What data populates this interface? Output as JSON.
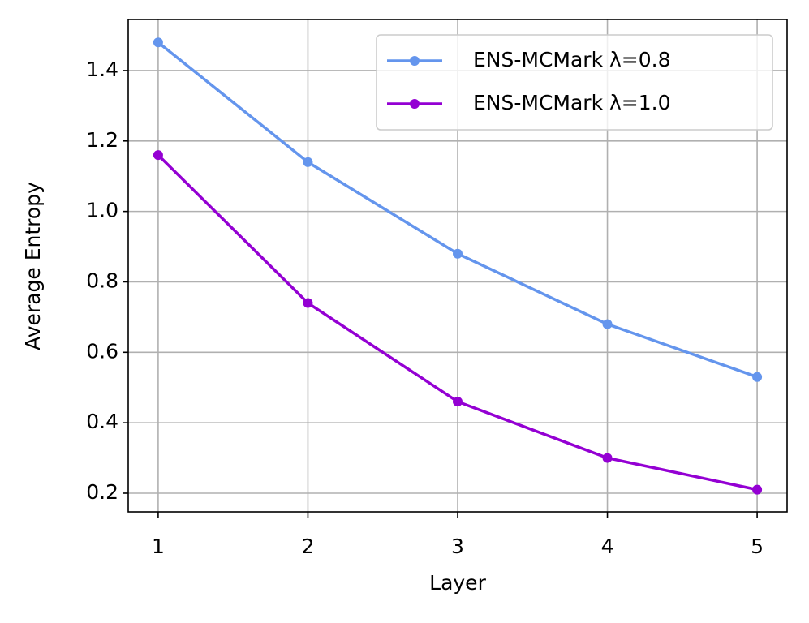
{
  "chart_data": {
    "type": "line",
    "x_label": "Layer",
    "y_label": "Average Entropy",
    "x": [
      1,
      2,
      3,
      4,
      5
    ],
    "series": [
      {
        "name": "ENS-MCMark λ=0.8",
        "color": "#6495ED",
        "values": [
          1.48,
          1.14,
          0.88,
          0.68,
          0.53
        ]
      },
      {
        "name": "ENS-MCMark λ=1.0",
        "color": "#9400D3",
        "values": [
          1.16,
          0.74,
          0.46,
          0.3,
          0.21
        ]
      }
    ],
    "xlim": [
      0.8,
      5.2
    ],
    "xticks": [
      1,
      2,
      3,
      4,
      5
    ],
    "ylim": [
      0.147,
      1.545
    ],
    "yticks": [
      0.2,
      0.4,
      0.6,
      0.8,
      {
        "value": 1,
        "label": "1.0"
      },
      1.2,
      1.4
    ],
    "grid": true,
    "legend": "upper right"
  }
}
